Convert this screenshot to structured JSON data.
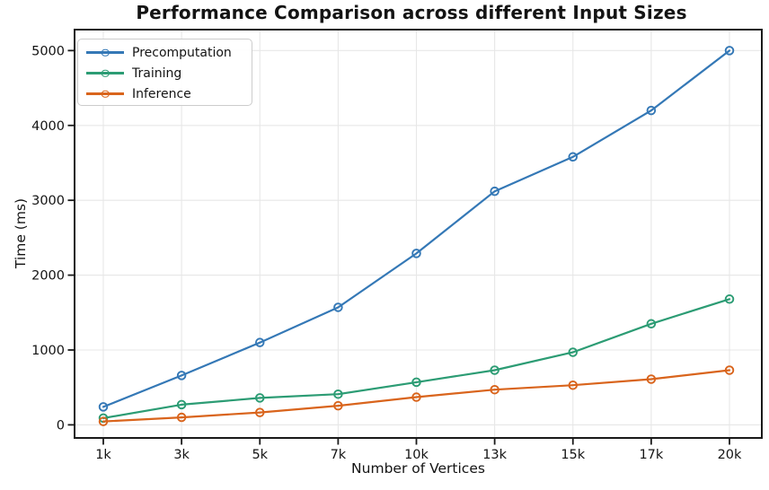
{
  "chart_data": {
    "type": "line",
    "title": "Performance Comparison across different Input Sizes",
    "xlabel": "Number of Vertices",
    "ylabel": "Time (ms)",
    "categories": [
      "1k",
      "3k",
      "5k",
      "7k",
      "10k",
      "13k",
      "15k",
      "17k",
      "20k"
    ],
    "yticks": [
      0,
      1000,
      2000,
      3000,
      4000,
      5000
    ],
    "ylim": [
      -175,
      5280
    ],
    "grid": true,
    "legend_position": "top-left",
    "marker": "open-circle",
    "colors": {
      "grid": "#e7e7e7",
      "spine": "#1a1a1a",
      "text": "#141414"
    },
    "series": [
      {
        "name": "Precomputation",
        "color": "#3478b6",
        "values": [
          240,
          660,
          1100,
          1570,
          2290,
          3120,
          3580,
          4200,
          5000
        ]
      },
      {
        "name": "Training",
        "color": "#2c9c74",
        "values": [
          90,
          270,
          360,
          410,
          570,
          730,
          970,
          1350,
          1680
        ]
      },
      {
        "name": "Inference",
        "color": "#d9641c",
        "values": [
          45,
          100,
          165,
          255,
          370,
          470,
          530,
          610,
          730
        ]
      }
    ]
  }
}
